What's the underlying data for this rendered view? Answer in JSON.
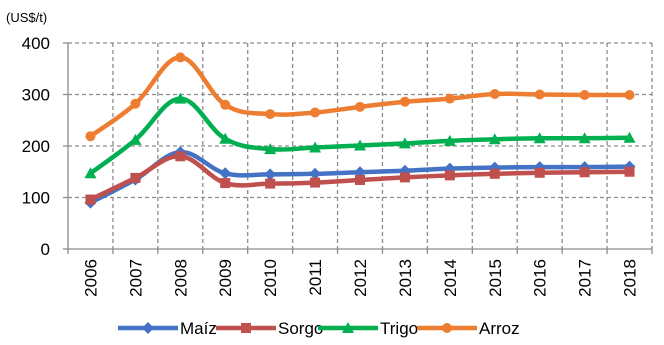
{
  "chart_data": {
    "type": "line",
    "unit_label": "(US$/t)",
    "categories": [
      "2006",
      "2007",
      "2008",
      "2009",
      "2010",
      "2011",
      "2012",
      "2013",
      "2014",
      "2015",
      "2016",
      "2017",
      "2018"
    ],
    "ylim": [
      0,
      400
    ],
    "yticks": [
      "0",
      "100",
      "200",
      "300",
      "400"
    ],
    "grid": true,
    "grid_style": "dashed",
    "legend_position": "bottom",
    "series": [
      {
        "name": "Maíz",
        "color": "#4472C4",
        "marker": "diamond",
        "values": [
          90,
          135,
          188,
          147,
          145,
          146,
          149,
          152,
          156,
          158,
          159,
          159,
          160
        ]
      },
      {
        "name": "Sorgo",
        "color": "#C0504D",
        "marker": "square",
        "values": [
          96,
          138,
          180,
          128,
          127,
          129,
          134,
          139,
          143,
          146,
          148,
          149,
          150
        ]
      },
      {
        "name": "Trigo",
        "color": "#00B050",
        "marker": "triangle",
        "values": [
          147,
          212,
          292,
          214,
          194,
          197,
          201,
          205,
          210,
          213,
          215,
          215,
          216
        ]
      },
      {
        "name": "Arroz",
        "color": "#ED7D31",
        "marker": "circle",
        "values": [
          219,
          282,
          372,
          280,
          262,
          265,
          276,
          286,
          292,
          301,
          300,
          299,
          299
        ]
      }
    ]
  }
}
